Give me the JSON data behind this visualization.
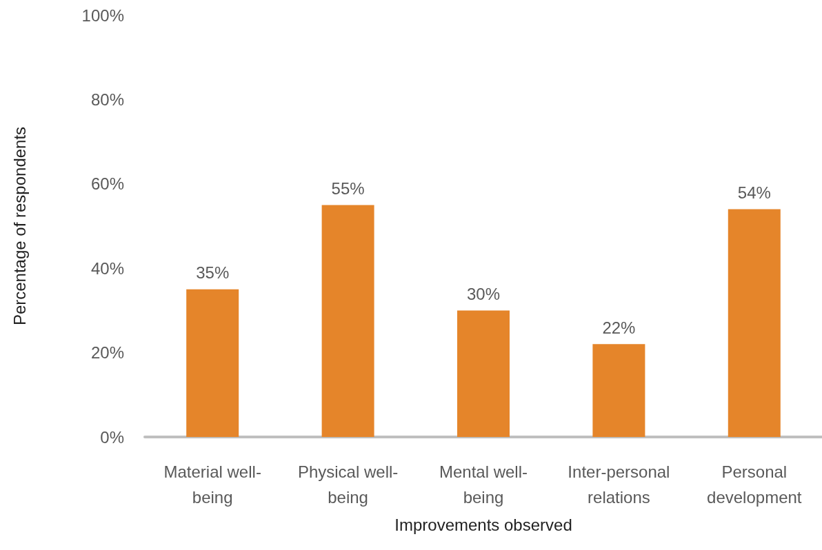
{
  "chart_data": {
    "type": "bar",
    "xlabel": "Improvements observed",
    "ylabel": "Percentage of respondents",
    "categories": [
      "Material well-being",
      "Physical well-being",
      "Mental well-being",
      "Inter-personal relations",
      "Personal development"
    ],
    "values": [
      35,
      55,
      30,
      22,
      54
    ],
    "value_labels": [
      "35%",
      "55%",
      "30%",
      "22%",
      "54%"
    ],
    "color": "#e5852a",
    "ylim": [
      0,
      100
    ],
    "yticks": [
      {
        "value": 0,
        "label": "0%"
      },
      {
        "value": 20,
        "label": "20%"
      },
      {
        "value": 40,
        "label": "40%"
      },
      {
        "value": 60,
        "label": "60%"
      },
      {
        "value": 80,
        "label": "80%"
      },
      {
        "value": 100,
        "label": "100%"
      }
    ]
  }
}
